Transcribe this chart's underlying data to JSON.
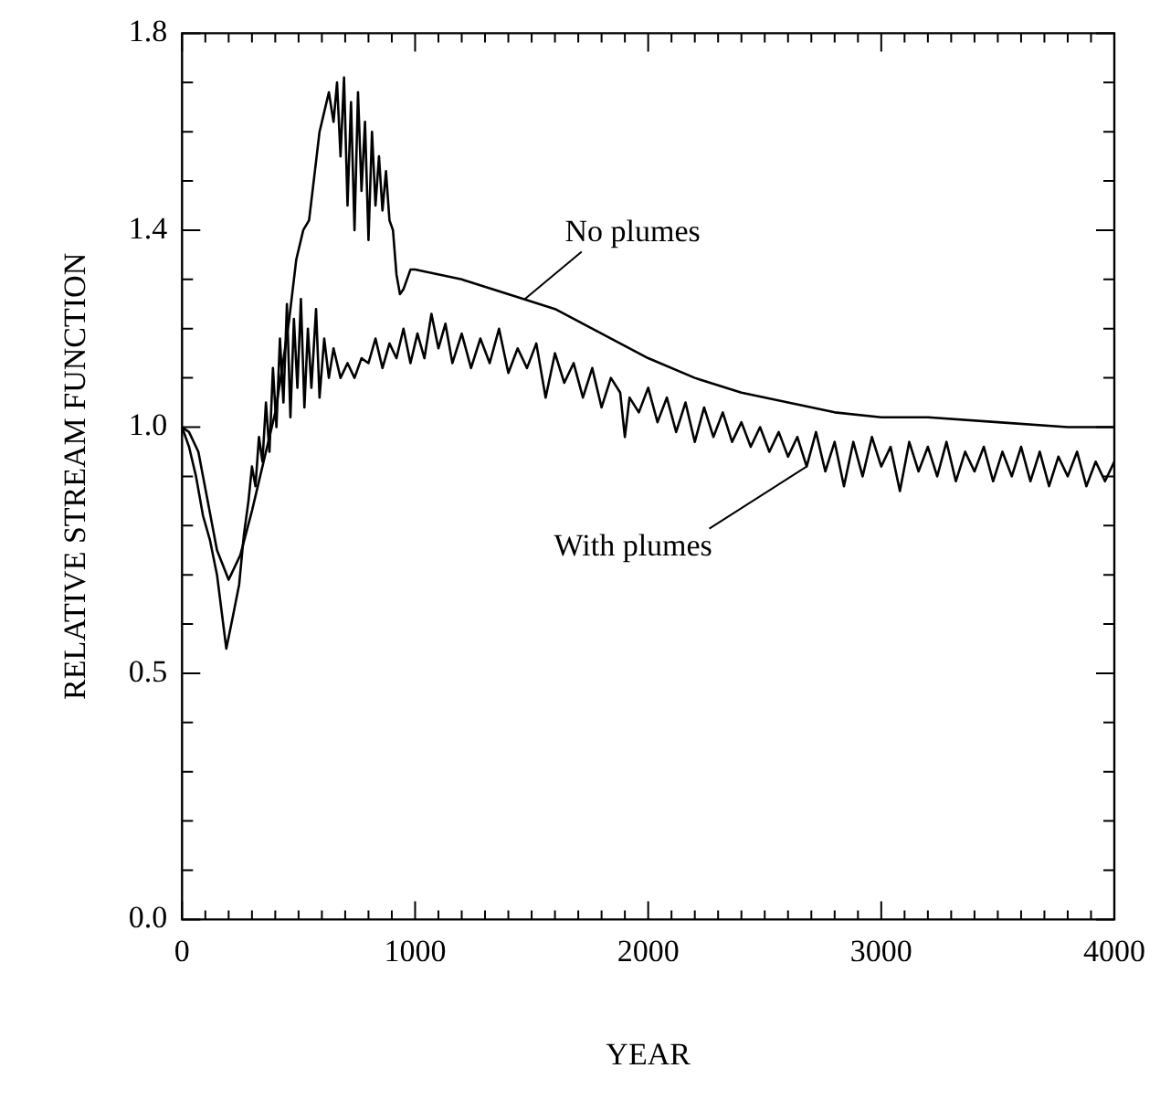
{
  "chart_data": {
    "type": "line",
    "xlabel": "YEAR",
    "ylabel": "RELATIVE STREAM FUNCTION",
    "xlim": [
      0,
      4000
    ],
    "ylim": [
      0,
      1.8
    ],
    "xticks": [
      0,
      {
        "value": 100,
        "label": null
      },
      {
        "value": 200,
        "label": null
      },
      {
        "value": 300,
        "label": null
      },
      {
        "value": 400,
        "label": null
      },
      {
        "value": 500,
        "label": null
      },
      {
        "value": 600,
        "label": null
      },
      {
        "value": 700,
        "label": null
      },
      {
        "value": 800,
        "label": null
      },
      {
        "value": 900,
        "label": null
      },
      1000,
      {
        "value": 1100,
        "label": null
      },
      {
        "value": 1200,
        "label": null
      },
      {
        "value": 1300,
        "label": null
      },
      {
        "value": 1400,
        "label": null
      },
      {
        "value": 1500,
        "label": null
      },
      {
        "value": 1600,
        "label": null
      },
      {
        "value": 1700,
        "label": null
      },
      {
        "value": 1800,
        "label": null
      },
      {
        "value": 1900,
        "label": null
      },
      2000,
      {
        "value": 2100,
        "label": null
      },
      {
        "value": 2200,
        "label": null
      },
      {
        "value": 2300,
        "label": null
      },
      {
        "value": 2400,
        "label": null
      },
      {
        "value": 2500,
        "label": null
      },
      {
        "value": 2600,
        "label": null
      },
      {
        "value": 2700,
        "label": null
      },
      {
        "value": 2800,
        "label": null
      },
      {
        "value": 2900,
        "label": null
      },
      3000,
      {
        "value": 3100,
        "label": null
      },
      {
        "value": 3200,
        "label": null
      },
      {
        "value": 3300,
        "label": null
      },
      {
        "value": 3400,
        "label": null
      },
      {
        "value": 3500,
        "label": null
      },
      {
        "value": 3600,
        "label": null
      },
      {
        "value": 3700,
        "label": null
      },
      {
        "value": 3800,
        "label": null
      },
      {
        "value": 3900,
        "label": null
      },
      4000
    ],
    "yticks": [
      {
        "value": 0,
        "label": "0.0"
      },
      {
        "value": 0.1,
        "label": null
      },
      {
        "value": 0.2,
        "label": null
      },
      {
        "value": 0.3,
        "label": null
      },
      {
        "value": 0.4,
        "label": null
      },
      0.5,
      {
        "value": 0.6,
        "label": null
      },
      {
        "value": 0.7,
        "label": null
      },
      {
        "value": 0.8,
        "label": null
      },
      {
        "value": 0.9,
        "label": null
      },
      {
        "value": 1,
        "label": "1.0"
      },
      {
        "value": 1.1,
        "label": null
      },
      {
        "value": 1.2,
        "label": null
      },
      {
        "value": 1.3,
        "label": null
      },
      1.4,
      {
        "value": 1.5,
        "label": null
      },
      {
        "value": 1.6,
        "label": null
      },
      {
        "value": 1.7,
        "label": null
      },
      1.8
    ],
    "marker": "none",
    "annotations": [
      {
        "text": "No plumes",
        "x": 1470,
        "y": 1.26
      },
      {
        "text": "With plumes",
        "x": 2680,
        "y": 0.92
      }
    ],
    "series": [
      {
        "color": "#000000",
        "x": [
          0,
          30,
          70,
          110,
          150,
          200,
          250,
          300,
          350,
          400,
          430,
          460,
          490,
          520,
          545,
          570,
          590,
          610,
          630,
          650,
          665,
          680,
          695,
          710,
          725,
          740,
          755,
          770,
          785,
          800,
          815,
          830,
          845,
          860,
          875,
          890,
          905,
          920,
          935,
          950,
          980,
          1000,
          1200,
          1400,
          1600,
          1800,
          2000,
          2200,
          2400,
          2600,
          2800,
          3000,
          3200,
          3500,
          3800,
          4000
        ],
        "values": [
          1.0,
          0.99,
          0.95,
          0.85,
          0.75,
          0.69,
          0.74,
          0.83,
          0.93,
          1.03,
          1.12,
          1.22,
          1.34,
          1.4,
          1.42,
          1.52,
          1.6,
          1.64,
          1.68,
          1.62,
          1.7,
          1.55,
          1.71,
          1.45,
          1.66,
          1.4,
          1.68,
          1.48,
          1.62,
          1.38,
          1.6,
          1.45,
          1.55,
          1.44,
          1.52,
          1.42,
          1.4,
          1.31,
          1.27,
          1.28,
          1.32,
          1.32,
          1.3,
          1.27,
          1.24,
          1.19,
          1.14,
          1.1,
          1.07,
          1.05,
          1.03,
          1.02,
          1.02,
          1.01,
          1.0,
          1.0
        ]
      },
      {
        "color": "#000000",
        "x": [
          0,
          30,
          60,
          90,
          120,
          150,
          190,
          220,
          245,
          265,
          285,
          300,
          315,
          330,
          345,
          360,
          375,
          390,
          405,
          420,
          435,
          450,
          465,
          480,
          495,
          510,
          525,
          540,
          555,
          575,
          590,
          610,
          630,
          650,
          680,
          710,
          740,
          770,
          800,
          830,
          860,
          890,
          920,
          950,
          980,
          1010,
          1040,
          1070,
          1100,
          1130,
          1160,
          1200,
          1240,
          1280,
          1320,
          1360,
          1400,
          1440,
          1480,
          1520,
          1560,
          1600,
          1640,
          1680,
          1720,
          1760,
          1800,
          1840,
          1880,
          1900,
          1920,
          1960,
          2000,
          2040,
          2080,
          2120,
          2160,
          2200,
          2240,
          2280,
          2320,
          2360,
          2400,
          2440,
          2480,
          2520,
          2560,
          2600,
          2640,
          2680,
          2720,
          2760,
          2800,
          2840,
          2880,
          2920,
          2960,
          3000,
          3040,
          3080,
          3120,
          3160,
          3200,
          3240,
          3280,
          3320,
          3360,
          3400,
          3440,
          3480,
          3520,
          3560,
          3600,
          3640,
          3680,
          3720,
          3760,
          3800,
          3840,
          3880,
          3920,
          3960,
          4000
        ],
        "values": [
          1.0,
          0.96,
          0.9,
          0.82,
          0.77,
          0.7,
          0.55,
          0.62,
          0.68,
          0.78,
          0.85,
          0.92,
          0.88,
          0.98,
          0.93,
          1.05,
          0.95,
          1.12,
          1.0,
          1.18,
          1.05,
          1.25,
          1.02,
          1.22,
          1.08,
          1.26,
          1.04,
          1.2,
          1.08,
          1.24,
          1.06,
          1.18,
          1.1,
          1.16,
          1.1,
          1.13,
          1.1,
          1.14,
          1.13,
          1.18,
          1.12,
          1.17,
          1.14,
          1.2,
          1.13,
          1.19,
          1.14,
          1.23,
          1.16,
          1.21,
          1.13,
          1.19,
          1.12,
          1.18,
          1.13,
          1.2,
          1.11,
          1.16,
          1.12,
          1.17,
          1.06,
          1.15,
          1.09,
          1.13,
          1.06,
          1.12,
          1.04,
          1.1,
          1.07,
          0.98,
          1.06,
          1.03,
          1.08,
          1.01,
          1.06,
          0.99,
          1.05,
          0.97,
          1.04,
          0.98,
          1.03,
          0.97,
          1.01,
          0.96,
          1.0,
          0.95,
          0.99,
          0.94,
          0.98,
          0.92,
          0.99,
          0.91,
          0.97,
          0.88,
          0.97,
          0.9,
          0.98,
          0.92,
          0.96,
          0.87,
          0.97,
          0.91,
          0.96,
          0.9,
          0.97,
          0.89,
          0.95,
          0.91,
          0.96,
          0.89,
          0.95,
          0.9,
          0.96,
          0.89,
          0.95,
          0.88,
          0.94,
          0.9,
          0.95,
          0.88,
          0.93,
          0.89,
          0.93
        ]
      }
    ]
  }
}
